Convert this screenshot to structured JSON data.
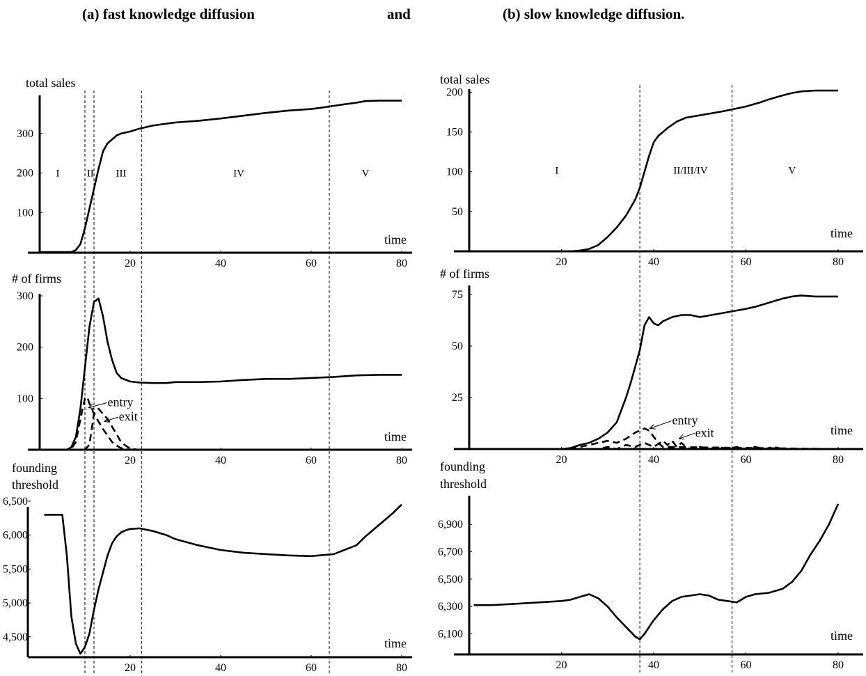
{
  "titles": {
    "a": "(a) fast knowledge diffusion",
    "connector": "and",
    "b": "(b) slow knowledge diffusion."
  },
  "chart_data": [
    {
      "id": "a-sales",
      "type": "line",
      "ylabel": "total sales",
      "xlabel": "time",
      "xlim": [
        0,
        80
      ],
      "xticks": [
        20,
        40,
        60,
        80
      ],
      "ylim": [
        0,
        400
      ],
      "yticks": [
        100,
        200,
        300
      ],
      "ytick_labels": [
        "100",
        "200",
        "300"
      ],
      "phase_lines": [
        10,
        12,
        22.5,
        64
      ],
      "phase_labels": [
        {
          "text": "I",
          "x": 4,
          "y": 200
        },
        {
          "text": "II",
          "x": 11.2,
          "y": 200
        },
        {
          "text": "III",
          "x": 18,
          "y": 200
        },
        {
          "text": "IV",
          "x": 44,
          "y": 200
        },
        {
          "text": "V",
          "x": 72,
          "y": 200
        }
      ],
      "series": [
        {
          "style": "solid",
          "x": [
            0,
            7,
            8,
            9,
            10,
            11,
            12,
            13,
            14,
            15,
            16,
            17,
            18,
            20,
            22,
            25,
            28,
            30,
            35,
            40,
            45,
            50,
            55,
            60,
            62,
            65,
            68,
            70,
            72,
            75,
            80
          ],
          "y": [
            0,
            0,
            5,
            20,
            60,
            110,
            160,
            210,
            255,
            275,
            285,
            295,
            300,
            305,
            312,
            320,
            325,
            328,
            332,
            338,
            345,
            352,
            358,
            362,
            365,
            370,
            375,
            378,
            382,
            383,
            383
          ]
        }
      ]
    },
    {
      "id": "a-firms",
      "type": "line",
      "ylabel": "# of firms",
      "xlabel": "time",
      "xlim": [
        0,
        80
      ],
      "xticks": [
        20,
        40,
        60,
        80
      ],
      "ylim": [
        0,
        300
      ],
      "yticks": [
        100,
        200,
        300
      ],
      "ytick_labels": [
        "100",
        "200",
        "300"
      ],
      "phase_lines": [
        10,
        12,
        22.5,
        64
      ],
      "annotations": [
        {
          "text": "entry",
          "x": 15,
          "y": 93,
          "arrow_to_x": 10.8,
          "arrow_to_y": 82
        },
        {
          "text": "exit",
          "x": 17.5,
          "y": 65,
          "arrow_to_x": 14.3,
          "arrow_to_y": 55
        }
      ],
      "series": [
        {
          "style": "solid",
          "x": [
            0,
            6,
            7,
            8,
            9,
            10,
            11,
            12,
            13,
            14,
            15,
            16,
            17,
            18,
            20,
            22,
            25,
            28,
            30,
            35,
            40,
            45,
            50,
            55,
            60,
            65,
            70,
            75,
            80
          ],
          "y": [
            0,
            0,
            5,
            25,
            80,
            160,
            240,
            288,
            295,
            260,
            210,
            175,
            150,
            140,
            133,
            131,
            130,
            130,
            132,
            132,
            133,
            136,
            138,
            138,
            140,
            142,
            145,
            146,
            146
          ]
        },
        {
          "style": "dashed",
          "x": [
            0,
            6,
            7,
            8,
            9,
            10,
            10.5,
            11,
            12,
            13,
            14,
            15,
            16,
            17,
            18,
            20,
            80
          ],
          "y": [
            0,
            0,
            2,
            15,
            60,
            100,
            103,
            90,
            70,
            55,
            40,
            28,
            15,
            8,
            3,
            0,
            0
          ]
        },
        {
          "style": "dashed",
          "x": [
            0,
            10,
            11,
            12,
            13,
            14,
            15,
            16,
            17,
            18,
            19,
            20,
            22,
            80
          ],
          "y": [
            0,
            0,
            10,
            70,
            80,
            70,
            60,
            45,
            30,
            15,
            8,
            2,
            0,
            0
          ]
        }
      ]
    },
    {
      "id": "a-threshold",
      "type": "line",
      "ylabel": "founding threshold",
      "xlabel": "time",
      "xlim": [
        0,
        80
      ],
      "xticks": [
        20,
        40,
        60,
        80
      ],
      "ylim": [
        4200,
        6550
      ],
      "yticks": [
        4500,
        5000,
        5500,
        6000,
        6500
      ],
      "ytick_labels": [
        "4,500",
        "5,000",
        "5,500",
        "6,000",
        "6,500"
      ],
      "phase_lines": [
        10,
        12,
        22.5,
        64
      ],
      "series": [
        {
          "style": "solid",
          "x": [
            1,
            4,
            5,
            6,
            7,
            8,
            9,
            10,
            11,
            12,
            13,
            14,
            15,
            16,
            17,
            18,
            19,
            20,
            22,
            25,
            28,
            30,
            35,
            40,
            45,
            50,
            55,
            60,
            65,
            70,
            72,
            75,
            78,
            80
          ],
          "y": [
            6300,
            6300,
            6300,
            5700,
            4800,
            4400,
            4250,
            4350,
            4550,
            4900,
            5200,
            5450,
            5700,
            5880,
            5980,
            6040,
            6070,
            6090,
            6100,
            6060,
            6000,
            5940,
            5850,
            5780,
            5740,
            5720,
            5700,
            5690,
            5720,
            5850,
            5980,
            6150,
            6320,
            6450
          ]
        }
      ]
    },
    {
      "id": "b-sales",
      "type": "line",
      "ylabel": "total sales",
      "xlabel": "time",
      "xlim": [
        0,
        80
      ],
      "xticks": [
        20,
        40,
        60,
        80
      ],
      "ylim": [
        0,
        210
      ],
      "yticks": [
        50,
        100,
        150,
        200
      ],
      "ytick_labels": [
        "50",
        "100",
        "150",
        "200"
      ],
      "phase_lines": [
        37,
        57
      ],
      "phase_labels": [
        {
          "text": "I",
          "x": 19,
          "y": 102
        },
        {
          "text": "II/III/IV",
          "x": 48,
          "y": 102
        },
        {
          "text": "V",
          "x": 70,
          "y": 102
        }
      ],
      "series": [
        {
          "style": "solid",
          "x": [
            0,
            20,
            22,
            24,
            26,
            28,
            30,
            32,
            34,
            35,
            36,
            37,
            38,
            39,
            40,
            41,
            42,
            43,
            45,
            47,
            50,
            55,
            60,
            63,
            65,
            68,
            70,
            72,
            75,
            80
          ],
          "y": [
            0,
            0,
            0,
            1,
            3,
            8,
            18,
            30,
            45,
            55,
            65,
            80,
            100,
            120,
            137,
            145,
            150,
            155,
            163,
            168,
            171,
            176,
            182,
            187,
            191,
            196,
            199,
            201,
            202,
            202
          ]
        }
      ]
    },
    {
      "id": "b-firms",
      "type": "line",
      "ylabel": "# of firms",
      "xlabel": "time",
      "xlim": [
        0,
        80
      ],
      "xticks": [
        20,
        40,
        60,
        80
      ],
      "ylim": [
        0,
        77
      ],
      "yticks": [
        25,
        50,
        75
      ],
      "ytick_labels": [
        "25",
        "50",
        "75"
      ],
      "phase_lines": [
        37,
        57
      ],
      "annotations": [
        {
          "text": "entry",
          "x": 44,
          "y": 14,
          "arrow_to_x": 39.2,
          "arrow_to_y": 10
        },
        {
          "text": "exit",
          "x": 49,
          "y": 8,
          "arrow_to_x": 45.5,
          "arrow_to_y": 5
        }
      ],
      "series": [
        {
          "style": "solid",
          "x": [
            0,
            20,
            22,
            24,
            26,
            28,
            30,
            32,
            34,
            35,
            36,
            37,
            38,
            39,
            40,
            41,
            42,
            44,
            46,
            48,
            50,
            55,
            60,
            62,
            65,
            68,
            70,
            72,
            75,
            80
          ],
          "y": [
            0,
            0,
            0.5,
            2,
            3,
            5,
            8,
            13,
            25,
            32,
            40,
            48,
            60,
            64,
            61,
            60,
            62,
            64,
            65,
            65,
            64,
            66,
            68,
            69,
            71,
            73,
            74,
            74.5,
            74,
            74
          ]
        },
        {
          "style": "dashed",
          "x": [
            0,
            22,
            24,
            26,
            28,
            30,
            32,
            34,
            36,
            38,
            39,
            40,
            41,
            42,
            80
          ],
          "y": [
            0,
            0,
            1,
            2,
            3,
            4,
            3,
            5,
            8,
            10,
            9,
            6,
            3,
            1,
            0
          ]
        },
        {
          "style": "dashed",
          "x": [
            0,
            28,
            30,
            32,
            34,
            36,
            38,
            40,
            42,
            43,
            44,
            45,
            46,
            47,
            48,
            50,
            52,
            54,
            56,
            58,
            60,
            62,
            64,
            66,
            68,
            70,
            80
          ],
          "y": [
            0,
            0,
            1,
            0,
            2,
            1,
            3,
            1,
            4,
            2,
            4,
            1,
            3,
            1,
            0,
            1,
            0,
            1,
            0,
            1,
            0,
            1,
            0,
            1,
            0,
            0,
            0
          ]
        }
      ]
    },
    {
      "id": "b-threshold",
      "type": "line",
      "ylabel": "founding threshold",
      "xlabel": "time",
      "xlim": [
        0,
        80
      ],
      "xticks": [
        20,
        40,
        60,
        80
      ],
      "ylim": [
        5950,
        7120
      ],
      "yticks": [
        6100,
        6300,
        6500,
        6700,
        6900
      ],
      "ytick_labels": [
        "6,100",
        "6,300",
        "6,500",
        "6,700",
        "6,900"
      ],
      "phase_lines": [
        37,
        57
      ],
      "series": [
        {
          "style": "solid",
          "x": [
            1,
            5,
            10,
            15,
            20,
            22,
            24,
            26,
            28,
            30,
            32,
            34,
            36,
            37,
            38,
            40,
            42,
            44,
            46,
            48,
            50,
            52,
            54,
            56,
            58,
            60,
            62,
            65,
            68,
            70,
            72,
            74,
            76,
            78,
            80
          ],
          "y": [
            6310,
            6310,
            6320,
            6330,
            6340,
            6350,
            6370,
            6390,
            6360,
            6300,
            6220,
            6150,
            6080,
            6060,
            6100,
            6200,
            6280,
            6340,
            6370,
            6380,
            6390,
            6380,
            6350,
            6340,
            6330,
            6370,
            6390,
            6400,
            6430,
            6480,
            6560,
            6680,
            6780,
            6900,
            7050
          ]
        }
      ]
    }
  ]
}
